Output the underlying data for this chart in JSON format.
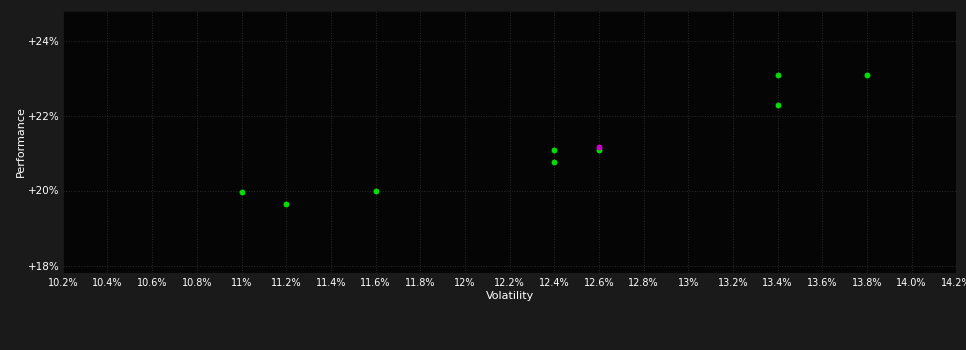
{
  "background_color": "#1a1a1a",
  "plot_bg_color": "#050505",
  "grid_color": "#2a2a2a",
  "text_color": "#ffffff",
  "xlabel": "Volatility",
  "ylabel": "Performance",
  "xlim": [
    0.102,
    0.142
  ],
  "ylim": [
    0.178,
    0.248
  ],
  "xticks": [
    0.102,
    0.104,
    0.106,
    0.108,
    0.11,
    0.112,
    0.114,
    0.116,
    0.118,
    0.12,
    0.122,
    0.124,
    0.126,
    0.128,
    0.13,
    0.132,
    0.134,
    0.136,
    0.138,
    0.14,
    0.142
  ],
  "yticks": [
    0.18,
    0.2,
    0.22,
    0.24
  ],
  "ytick_labels": [
    "+18%",
    "+20%",
    "+22%",
    "+24%"
  ],
  "green_points": [
    [
      0.11,
      0.1995
    ],
    [
      0.112,
      0.1965
    ],
    [
      0.116,
      0.1998
    ],
    [
      0.124,
      0.2108
    ],
    [
      0.124,
      0.2075
    ],
    [
      0.126,
      0.2108
    ],
    [
      0.134,
      0.2308
    ],
    [
      0.134,
      0.2228
    ],
    [
      0.138,
      0.2308
    ]
  ],
  "magenta_points": [
    [
      0.126,
      0.2115
    ]
  ],
  "point_size": 18,
  "green_color": "#00dd00",
  "magenta_color": "#cc00cc",
  "figsize": [
    9.66,
    3.5
  ],
  "dpi": 100
}
